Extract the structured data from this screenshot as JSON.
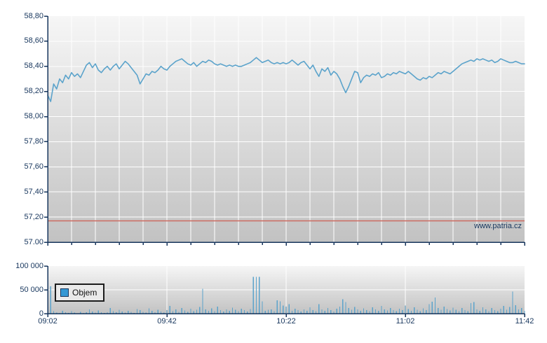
{
  "colors": {
    "page_background": "#ffffff",
    "axis": "#17365d",
    "grid": "#ffffff",
    "plot_gradient_top": "#f6f6f6",
    "plot_gradient_bottom": "#c2c2c2",
    "price_line": "#5ba3cb",
    "volume_bar": "#5ba3cb",
    "reference_line": "#cc6a60",
    "label_text": "#17365d",
    "legend_background": "#eaeaea",
    "legend_border": "#1c1c1c",
    "legend_marker": "#3598d4"
  },
  "chart_data": [
    {
      "type": "line",
      "name": "intraday-price",
      "watermark": "www.patria.cz",
      "ylim": [
        57.0,
        58.8
      ],
      "y_ticks": [
        {
          "value": 58.8,
          "label": "58,80"
        },
        {
          "value": 58.6,
          "label": "58,60"
        },
        {
          "value": 58.4,
          "label": "58,40"
        },
        {
          "value": 58.2,
          "label": "58,20"
        },
        {
          "value": 58.0,
          "label": "58,00"
        },
        {
          "value": 57.8,
          "label": "57,80"
        },
        {
          "value": 57.6,
          "label": "57,60"
        },
        {
          "value": 57.4,
          "label": "57,40"
        },
        {
          "value": 57.2,
          "label": "57,20"
        },
        {
          "value": 57.0,
          "label": "57.00"
        }
      ],
      "xlim_minutes": [
        0,
        160
      ],
      "x_minor_step_min": 8,
      "x_ticks": [
        {
          "minute": 0,
          "label": "09:02"
        },
        {
          "minute": 40,
          "label": "09:42"
        },
        {
          "minute": 80,
          "label": "10:22"
        },
        {
          "minute": 120,
          "label": "11:02"
        },
        {
          "minute": 160,
          "label": "11:42"
        }
      ],
      "reference_line_value": 57.17,
      "interval_minutes": 1,
      "values": [
        58.17,
        58.12,
        58.26,
        58.22,
        58.3,
        58.27,
        58.33,
        58.3,
        58.35,
        58.32,
        58.34,
        58.31,
        58.36,
        58.41,
        58.43,
        58.39,
        58.42,
        58.37,
        58.35,
        58.38,
        58.4,
        58.37,
        58.4,
        58.42,
        58.38,
        58.41,
        58.44,
        58.42,
        58.39,
        58.36,
        58.33,
        58.26,
        58.3,
        58.34,
        58.33,
        58.36,
        58.35,
        58.37,
        58.4,
        58.38,
        58.37,
        58.4,
        58.42,
        58.44,
        58.45,
        58.46,
        58.44,
        58.42,
        58.41,
        58.43,
        58.4,
        58.42,
        58.44,
        58.43,
        58.45,
        58.44,
        58.42,
        58.41,
        58.42,
        58.41,
        58.4,
        58.41,
        58.4,
        58.41,
        58.4,
        58.4,
        58.41,
        58.42,
        58.43,
        58.45,
        58.47,
        58.45,
        58.43,
        58.44,
        58.45,
        58.43,
        58.42,
        58.43,
        58.42,
        58.43,
        58.42,
        58.43,
        58.45,
        58.43,
        58.41,
        58.43,
        58.44,
        58.41,
        58.38,
        58.41,
        58.36,
        58.32,
        58.38,
        58.36,
        58.39,
        58.33,
        58.36,
        58.34,
        58.3,
        58.24,
        58.19,
        58.24,
        58.3,
        58.36,
        58.35,
        58.27,
        58.31,
        58.33,
        58.32,
        58.34,
        58.33,
        58.35,
        58.31,
        58.32,
        58.34,
        58.33,
        58.35,
        58.34,
        58.36,
        58.35,
        58.34,
        58.36,
        58.34,
        58.32,
        58.3,
        58.29,
        58.31,
        58.3,
        58.32,
        58.31,
        58.33,
        58.35,
        58.34,
        58.36,
        58.35,
        58.34,
        58.36,
        58.38,
        58.4,
        58.42,
        58.43,
        58.44,
        58.45,
        58.44,
        58.46,
        58.45,
        58.46,
        58.45,
        58.44,
        58.45,
        58.43,
        58.44,
        58.46,
        58.45,
        58.44,
        58.43,
        58.43,
        58.44,
        58.43,
        58.42,
        58.42
      ]
    },
    {
      "type": "bar",
      "name": "volume",
      "legend": "Objem",
      "ylim": [
        0,
        100000
      ],
      "y_ticks": [
        {
          "value": 100000,
          "label": "100 000"
        },
        {
          "value": 50000,
          "label": "50 000"
        },
        {
          "value": 0,
          "label": "0"
        }
      ],
      "interval_minutes": 1,
      "values": [
        9000,
        57500,
        5000,
        2500,
        1500,
        6000,
        3000,
        1200,
        5000,
        2200,
        900,
        3600,
        1500,
        2600,
        9000,
        4200,
        2000,
        6500,
        3000,
        1600,
        2600,
        12000,
        5000,
        3200,
        8000,
        4500,
        2000,
        6000,
        3600,
        1800,
        9500,
        7000,
        4000,
        2500,
        11000,
        6000,
        3000,
        8000,
        4500,
        2500,
        7000,
        16000,
        5200,
        9000,
        3500,
        12000,
        6500,
        4000,
        10000,
        5500,
        8000,
        14000,
        52000,
        9000,
        6000,
        11000,
        5000,
        15000,
        7500,
        4200,
        9000,
        6000,
        12500,
        8000,
        5000,
        10000,
        7000,
        4500,
        9500,
        77000,
        77000,
        77000,
        26000,
        6000,
        8000,
        9000,
        5000,
        28000,
        26000,
        17000,
        15000,
        20000,
        6000,
        10500,
        7000,
        4500,
        9000,
        6000,
        13000,
        7500,
        5000,
        20000,
        9000,
        6000,
        11500,
        7000,
        4500,
        10000,
        15000,
        30000,
        24000,
        12000,
        8000,
        14000,
        9000,
        6000,
        11000,
        7500,
        5000,
        13000,
        8500,
        6000,
        16000,
        9000,
        6500,
        12000,
        7500,
        5000,
        10500,
        7000,
        17000,
        9500,
        6000,
        13500,
        8000,
        5500,
        11000,
        7500,
        20000,
        25000,
        34000,
        12000,
        8000,
        15000,
        9500,
        6500,
        12500,
        8000,
        5500,
        11500,
        7500,
        5000,
        22000,
        24000,
        9000,
        6000,
        13000,
        8500,
        5500,
        12000,
        7500,
        5000,
        10000,
        16000,
        8000,
        14000,
        46000,
        18000,
        9000,
        12000,
        6000
      ]
    }
  ]
}
